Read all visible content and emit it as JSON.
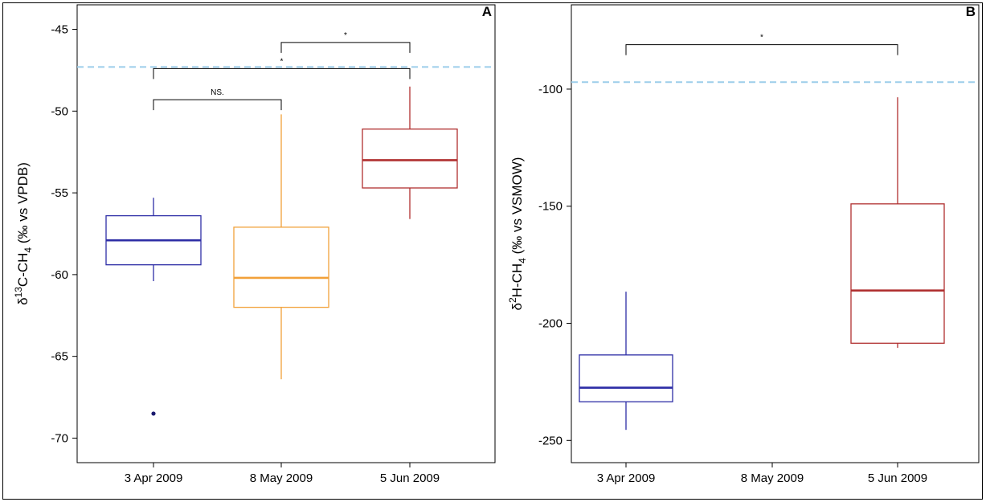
{
  "chart_data": [
    {
      "type": "box",
      "panel_label": "A",
      "ylabel_parts": [
        "δ",
        "13",
        "C-CH",
        "4",
        " (‰ vs VPDB)"
      ],
      "categories": [
        "3 Apr 2009",
        "8 May 2009",
        "5 Jun 2009"
      ],
      "ylim": [
        -71.5,
        -43.5
      ],
      "yticks": [
        -45,
        -50,
        -55,
        -60,
        -65,
        -70
      ],
      "ytick_labels": [
        "-45",
        "-50",
        "-55",
        "-60",
        "-65",
        "-70"
      ],
      "reference_line": -47.3,
      "grid": false,
      "boxes": [
        {
          "category": "3 Apr 2009",
          "whisker_low": -60.4,
          "q1": -59.4,
          "median": -57.9,
          "q3": -56.4,
          "whisker_high": -55.3,
          "outliers": [
            -68.5
          ],
          "color": "#2e2ea6"
        },
        {
          "category": "8 May 2009",
          "whisker_low": -66.4,
          "q1": -62.0,
          "median": -60.2,
          "q3": -57.1,
          "whisker_high": -50.2,
          "outliers": [],
          "color": "#f2a13a"
        },
        {
          "category": "5 Jun 2009",
          "whisker_low": -56.6,
          "q1": -54.7,
          "median": -53.0,
          "q3": -51.1,
          "whisker_high": -48.5,
          "outliers": [],
          "color": "#b03030"
        }
      ],
      "brackets": [
        {
          "from": 0,
          "to": 1,
          "y": -49.3,
          "label": "NS."
        },
        {
          "from": 0,
          "to": 2,
          "y": -47.4,
          "label": "*"
        },
        {
          "from": 1,
          "to": 2,
          "y": -45.8,
          "label": "*"
        }
      ]
    },
    {
      "type": "box",
      "panel_label": "B",
      "ylabel_parts": [
        "δ",
        "2",
        "H-CH",
        "4",
        " (‰ vs VSMOW)"
      ],
      "categories": [
        "3 Apr 2009",
        "8 May 2009",
        "5 Jun 2009"
      ],
      "ylim": [
        -259.5,
        -64
      ],
      "yticks": [
        -100,
        -150,
        -200,
        -250
      ],
      "ytick_labels": [
        "-100",
        "-150",
        "-200",
        "-250"
      ],
      "reference_line": -97,
      "grid": false,
      "boxes": [
        {
          "category": "3 Apr 2009",
          "whisker_low": -245.5,
          "q1": -233.5,
          "median": -227.5,
          "q3": -213.5,
          "whisker_high": -186.5,
          "outliers": [],
          "color": "#2e2ea6"
        },
        {
          "category": "5 Jun 2009",
          "whisker_low": -210.5,
          "q1": -208.5,
          "median": -186.0,
          "q3": -149.0,
          "whisker_high": -103.5,
          "outliers": [],
          "color": "#b03030"
        }
      ],
      "brackets": [
        {
          "from": 0,
          "to": 2,
          "y": -81.0,
          "label": "*"
        }
      ]
    }
  ]
}
